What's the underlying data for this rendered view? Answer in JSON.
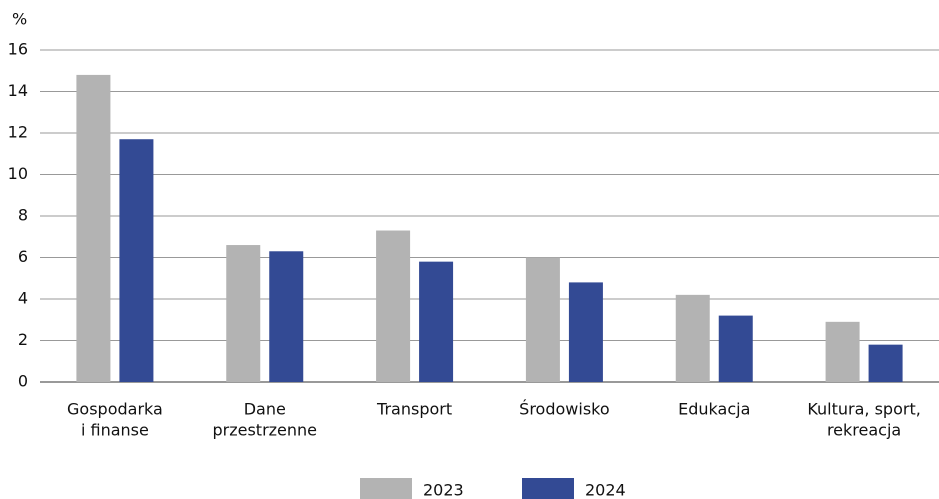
{
  "chart_data": {
    "type": "bar",
    "y_unit": "%",
    "categories": [
      [
        "Gospodarka",
        "i finanse"
      ],
      [
        "Dane",
        "przestrzenne"
      ],
      [
        "Transport"
      ],
      [
        "Środowisko"
      ],
      [
        "Edukacja"
      ],
      [
        "Kultura, sport,",
        "rekreacja"
      ]
    ],
    "series": [
      {
        "name": "2023",
        "color": "#b3b3b3",
        "values": [
          14.8,
          6.6,
          7.3,
          6.0,
          4.2,
          2.9
        ]
      },
      {
        "name": "2024",
        "color": "#334a94",
        "values": [
          11.7,
          6.3,
          5.8,
          4.8,
          3.2,
          1.8
        ]
      }
    ],
    "ylim": [
      0,
      16
    ],
    "yticks": [
      0,
      2,
      4,
      6,
      8,
      10,
      12,
      14,
      16
    ],
    "grid": true,
    "legend": "bottom"
  }
}
